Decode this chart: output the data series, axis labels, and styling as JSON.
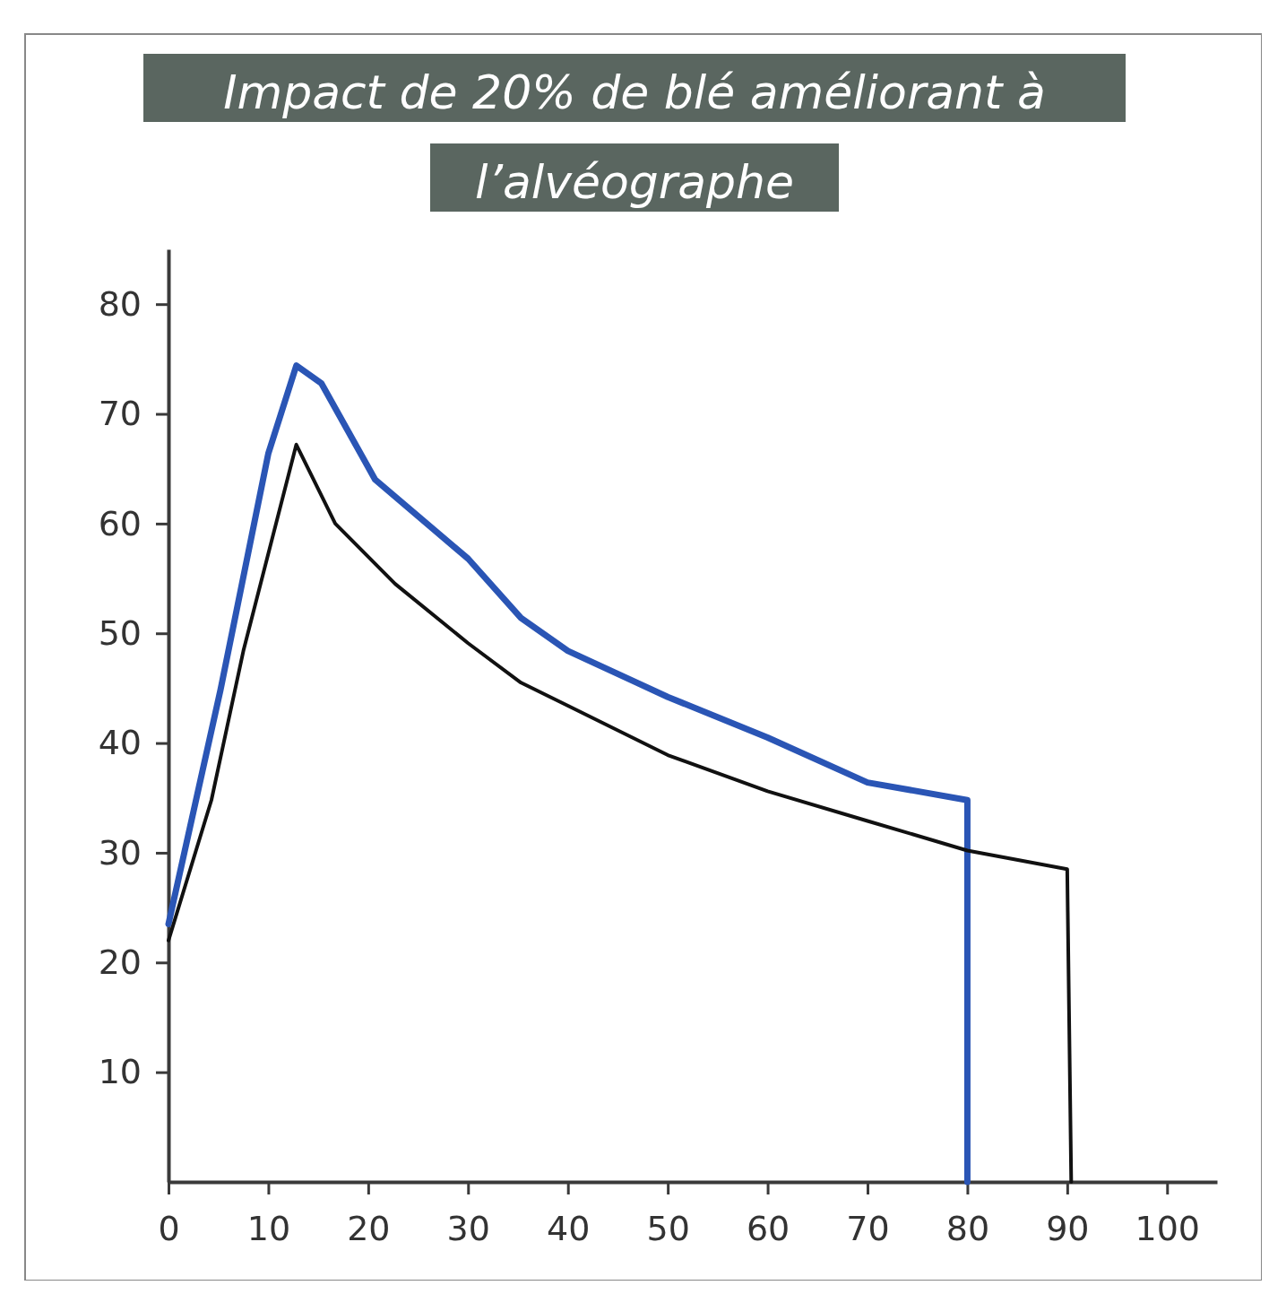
{
  "chart_data": {
    "type": "line",
    "title": "Impact de 20% de blé améliorant à l’alvéographe",
    "xlim": [
      0,
      105
    ],
    "ylim": [
      0,
      85
    ],
    "xticks": [
      0,
      10,
      20,
      30,
      40,
      50,
      60,
      70,
      80,
      90,
      100
    ],
    "yticks": [
      10,
      20,
      30,
      40,
      50,
      60,
      70,
      80
    ],
    "grid": false,
    "marker": "none",
    "line_style": "solid",
    "series": [
      {
        "color": "#2a55b5",
        "x": [
          0,
          5.2,
          10,
          12.8,
          15.3,
          20.7,
          30,
          35.3,
          40,
          50,
          60,
          70,
          80,
          80
        ],
        "values": [
          23.5,
          44.8,
          66.4,
          74.4,
          72.8,
          64,
          56.8,
          51.4,
          48.4,
          44.2,
          40.5,
          36.4,
          34.8,
          0
        ]
      },
      {
        "color": "#111111",
        "x": [
          0,
          4.3,
          7.5,
          12.8,
          16.7,
          22.7,
          30,
          35.3,
          40,
          50,
          60,
          70,
          80,
          90,
          90.4
        ],
        "values": [
          22,
          34.8,
          48.4,
          67.2,
          60,
          54.5,
          49.1,
          45.5,
          43.4,
          38.9,
          35.6,
          32.9,
          30.2,
          28.5,
          0
        ]
      }
    ]
  }
}
